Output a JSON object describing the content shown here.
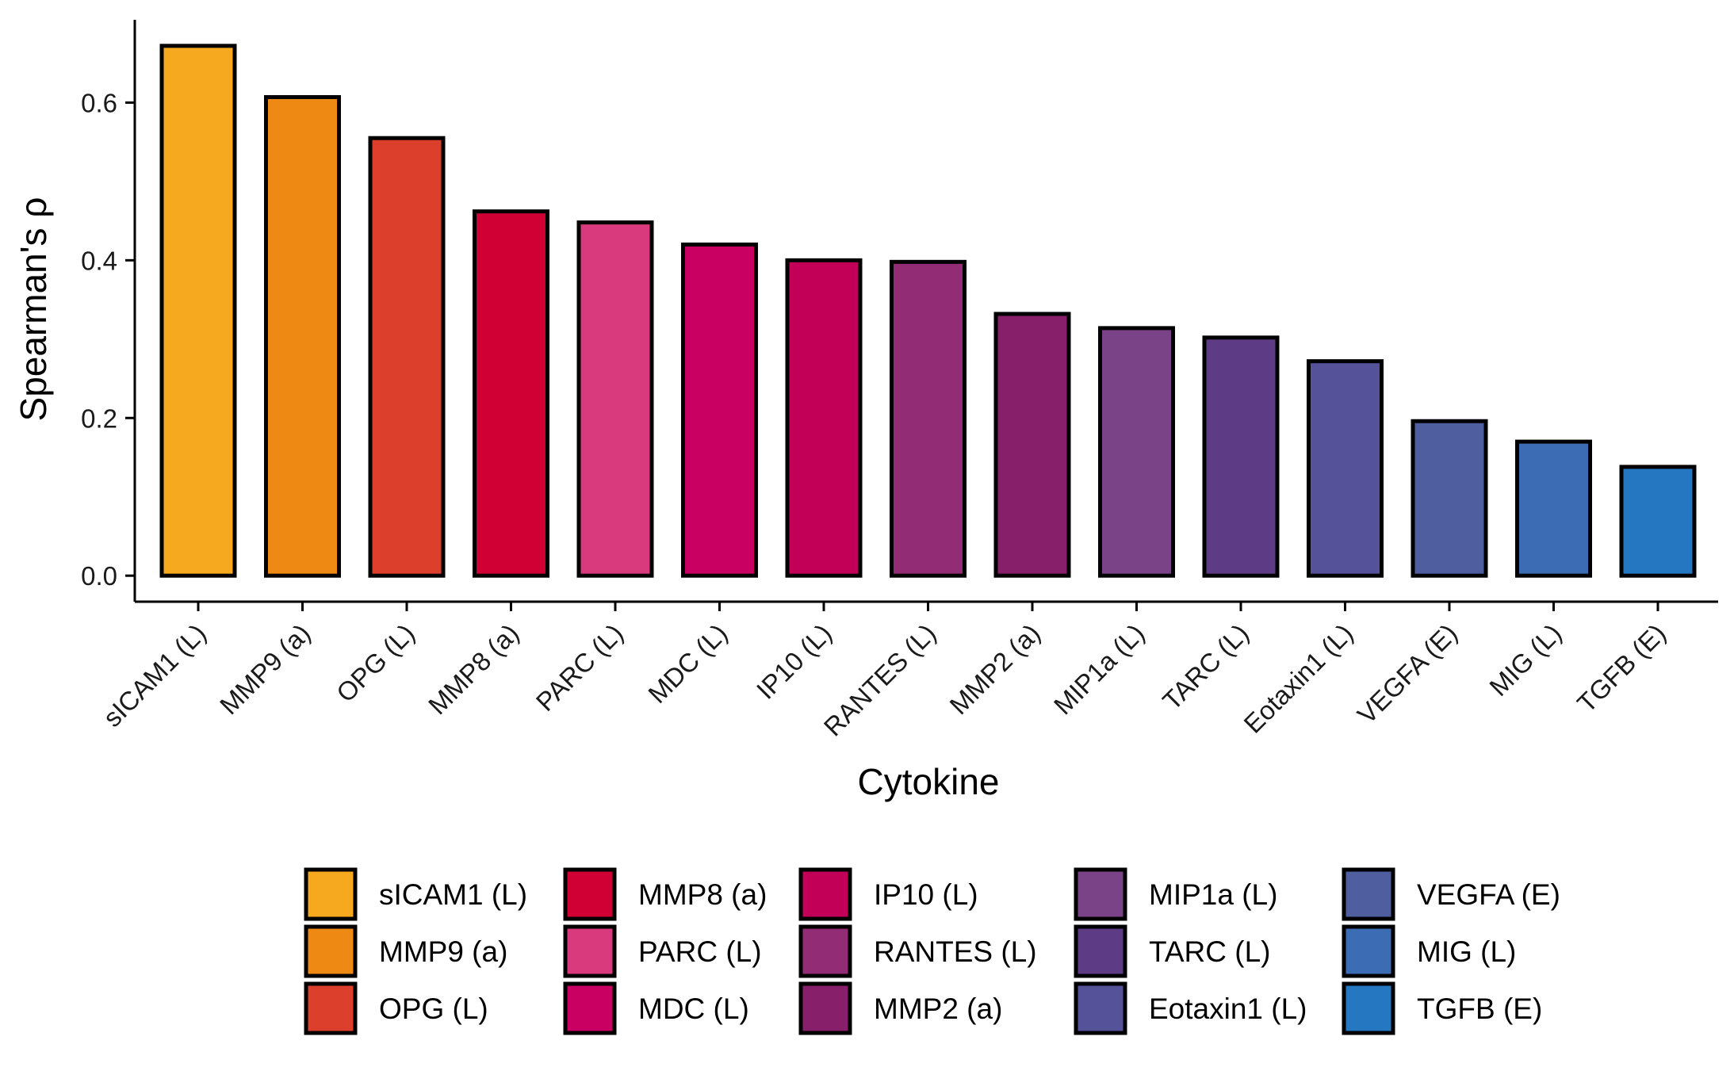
{
  "chart_data": {
    "type": "bar",
    "xlabel": "Cytokine",
    "ylabel": "Spearman's ρ",
    "ylim": [
      -0.033,
      0.705
    ],
    "yticks": [
      0.0,
      0.2,
      0.4,
      0.6
    ],
    "ytick_labels": [
      "0.0",
      "0.2",
      "0.4",
      "0.6"
    ],
    "grid": false,
    "legend_position": "bottom",
    "legend_columns": 5,
    "categories": [
      "sICAM1 (L)",
      "MMP9 (a)",
      "OPG (L)",
      "MMP8 (a)",
      "PARC (L)",
      "MDC (L)",
      "IP10 (L)",
      "RANTES (L)",
      "MMP2 (a)",
      "MIP1a (L)",
      "TARC (L)",
      "Eotaxin1 (L)",
      "VEGFA (E)",
      "MIG (L)",
      "TGFB (E)"
    ],
    "values": [
      0.672,
      0.607,
      0.555,
      0.462,
      0.448,
      0.42,
      0.4,
      0.398,
      0.332,
      0.314,
      0.302,
      0.272,
      0.196,
      0.17,
      0.138
    ],
    "colors": [
      "#F6A81E",
      "#EE8A13",
      "#DC402D",
      "#D10034",
      "#D93A7E",
      "#C90062",
      "#C20058",
      "#922C74",
      "#871F6B",
      "#7A4287",
      "#5E3C85",
      "#55529A",
      "#4E5E9E",
      "#3C6DB4",
      "#2477C0"
    ]
  }
}
